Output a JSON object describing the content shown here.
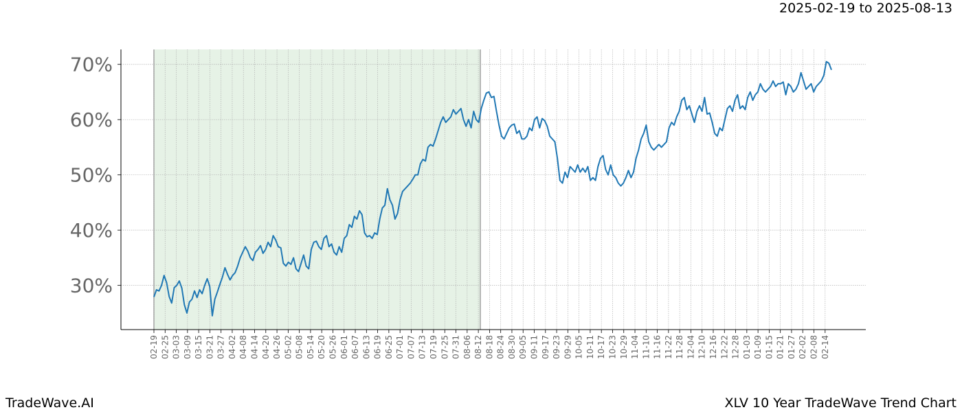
{
  "header": {
    "date_range": "2025-02-19 to 2025-08-13"
  },
  "footer": {
    "brand": "TradeWave.AI",
    "title": "XLV 10 Year TradeWave Trend Chart"
  },
  "chart_data": {
    "type": "line",
    "title": "XLV 10 Year TradeWave Trend Chart",
    "xlabel": "",
    "ylabel": "",
    "ylim": [
      22,
      72.7
    ],
    "grid": true,
    "legend": "none",
    "line_color": "#1f77b4",
    "highlight_color": "#e6f2e6",
    "highlight_range": [
      "02-19",
      "08-13"
    ],
    "y_ticks": [
      {
        "value": 30,
        "label": "30%"
      },
      {
        "value": 40,
        "label": "40%"
      },
      {
        "value": 50,
        "label": "50%"
      },
      {
        "value": 60,
        "label": "60%"
      },
      {
        "value": 70,
        "label": "70%"
      }
    ],
    "x_ticks": [
      "02-19",
      "02-25",
      "03-03",
      "03-09",
      "03-15",
      "03-21",
      "03-27",
      "04-02",
      "04-08",
      "04-14",
      "04-20",
      "04-26",
      "05-02",
      "05-08",
      "05-14",
      "05-20",
      "05-26",
      "06-01",
      "06-07",
      "06-13",
      "06-19",
      "06-25",
      "07-01",
      "07-07",
      "07-13",
      "07-19",
      "07-25",
      "07-31",
      "08-06",
      "08-12",
      "08-18",
      "08-24",
      "08-30",
      "09-05",
      "09-11",
      "09-17",
      "09-23",
      "09-29",
      "10-05",
      "10-11",
      "10-17",
      "10-23",
      "10-29",
      "11-04",
      "11-10",
      "11-16",
      "11-22",
      "11-28",
      "12-04",
      "12-10",
      "12-16",
      "12-22",
      "12-28",
      "01-03",
      "01-09",
      "01-15",
      "01-21",
      "01-27",
      "02-02",
      "02-08",
      "02-14"
    ],
    "series": [
      {
        "points": [
          [
            0,
            27.9
          ],
          [
            1,
            29.2
          ],
          [
            2,
            29.0
          ],
          [
            3,
            30.0
          ],
          [
            4,
            31.8
          ],
          [
            5,
            30.5
          ],
          [
            6,
            28.0
          ],
          [
            7,
            26.8
          ],
          [
            8,
            29.6
          ],
          [
            9,
            30.0
          ],
          [
            10,
            30.8
          ],
          [
            11,
            29.5
          ],
          [
            12,
            26.5
          ],
          [
            13,
            25.0
          ],
          [
            14,
            27.0
          ],
          [
            15,
            27.5
          ],
          [
            16,
            29.0
          ],
          [
            17,
            27.8
          ],
          [
            18,
            29.2
          ],
          [
            19,
            28.5
          ],
          [
            20,
            30.0
          ],
          [
            21,
            31.2
          ],
          [
            22,
            29.8
          ],
          [
            23,
            24.5
          ],
          [
            24,
            27.5
          ],
          [
            25,
            28.8
          ],
          [
            26,
            30.2
          ],
          [
            27,
            31.5
          ],
          [
            28,
            33.2
          ],
          [
            29,
            32.0
          ],
          [
            30,
            31.0
          ],
          [
            31,
            31.8
          ],
          [
            32,
            32.3
          ],
          [
            33,
            33.5
          ],
          [
            34,
            35.0
          ],
          [
            35,
            36.0
          ],
          [
            36,
            37.0
          ],
          [
            37,
            36.2
          ],
          [
            38,
            35.0
          ],
          [
            39,
            34.5
          ],
          [
            40,
            36.0
          ],
          [
            41,
            36.5
          ],
          [
            42,
            37.2
          ],
          [
            43,
            35.8
          ],
          [
            44,
            36.5
          ],
          [
            45,
            37.8
          ],
          [
            46,
            37.0
          ],
          [
            47,
            39.0
          ],
          [
            48,
            38.2
          ],
          [
            49,
            37.0
          ],
          [
            50,
            36.8
          ],
          [
            51,
            34.0
          ],
          [
            52,
            33.5
          ],
          [
            53,
            34.2
          ],
          [
            54,
            33.8
          ],
          [
            55,
            35.0
          ],
          [
            56,
            33.0
          ],
          [
            57,
            32.5
          ],
          [
            58,
            34.0
          ],
          [
            59,
            35.5
          ],
          [
            60,
            33.5
          ],
          [
            61,
            33.0
          ],
          [
            62,
            36.5
          ],
          [
            63,
            37.8
          ],
          [
            64,
            38.0
          ],
          [
            65,
            37.0
          ],
          [
            66,
            36.5
          ],
          [
            67,
            38.5
          ],
          [
            68,
            39.0
          ],
          [
            69,
            37.0
          ],
          [
            70,
            37.5
          ],
          [
            71,
            36.0
          ],
          [
            72,
            35.5
          ],
          [
            73,
            37.0
          ],
          [
            74,
            36.0
          ],
          [
            75,
            38.5
          ],
          [
            76,
            39.0
          ],
          [
            77,
            41.0
          ],
          [
            78,
            40.5
          ],
          [
            79,
            42.5
          ],
          [
            80,
            42.0
          ],
          [
            81,
            43.5
          ],
          [
            82,
            42.8
          ],
          [
            83,
            39.5
          ],
          [
            84,
            38.8
          ],
          [
            85,
            39.0
          ],
          [
            86,
            38.5
          ],
          [
            87,
            39.5
          ],
          [
            88,
            39.2
          ],
          [
            89,
            42.0
          ],
          [
            90,
            44.0
          ],
          [
            91,
            44.5
          ],
          [
            92,
            47.5
          ],
          [
            93,
            45.5
          ],
          [
            94,
            44.5
          ],
          [
            95,
            42.0
          ],
          [
            96,
            43.0
          ],
          [
            97,
            45.5
          ],
          [
            98,
            47.0
          ],
          [
            99,
            47.5
          ],
          [
            100,
            48.0
          ],
          [
            101,
            48.5
          ],
          [
            102,
            49.2
          ],
          [
            103,
            50.0
          ],
          [
            104,
            50.0
          ],
          [
            105,
            52.0
          ],
          [
            106,
            52.8
          ],
          [
            107,
            52.5
          ],
          [
            108,
            55.0
          ],
          [
            109,
            55.5
          ],
          [
            110,
            55.2
          ],
          [
            111,
            56.5
          ],
          [
            112,
            58.0
          ],
          [
            113,
            59.5
          ],
          [
            114,
            60.5
          ],
          [
            115,
            59.5
          ],
          [
            116,
            60.0
          ],
          [
            117,
            60.5
          ],
          [
            118,
            61.8
          ],
          [
            119,
            61.0
          ],
          [
            120,
            61.5
          ],
          [
            121,
            62.0
          ],
          [
            122,
            60.0
          ],
          [
            123,
            58.8
          ],
          [
            124,
            60.0
          ],
          [
            125,
            58.5
          ],
          [
            126,
            61.5
          ],
          [
            127,
            60.0
          ],
          [
            128,
            59.5
          ],
          [
            129,
            62.0
          ],
          [
            130,
            63.5
          ],
          [
            131,
            64.8
          ],
          [
            132,
            65.0
          ],
          [
            133,
            64.0
          ],
          [
            134,
            64.2
          ],
          [
            135,
            61.5
          ],
          [
            136,
            59.0
          ],
          [
            137,
            57.0
          ],
          [
            138,
            56.5
          ],
          [
            139,
            57.5
          ],
          [
            140,
            58.5
          ],
          [
            141,
            59.0
          ],
          [
            142,
            59.2
          ],
          [
            143,
            57.5
          ],
          [
            144,
            58.0
          ],
          [
            145,
            56.5
          ],
          [
            146,
            56.5
          ],
          [
            147,
            57.0
          ],
          [
            148,
            58.5
          ],
          [
            149,
            58.0
          ],
          [
            150,
            60.0
          ],
          [
            151,
            60.5
          ],
          [
            152,
            58.5
          ],
          [
            153,
            60.2
          ],
          [
            154,
            59.8
          ],
          [
            155,
            58.8
          ],
          [
            156,
            57.0
          ],
          [
            157,
            56.5
          ],
          [
            158,
            56.0
          ],
          [
            159,
            53.0
          ],
          [
            160,
            49.0
          ],
          [
            161,
            48.5
          ],
          [
            162,
            50.5
          ],
          [
            163,
            49.5
          ],
          [
            164,
            51.5
          ],
          [
            165,
            51.0
          ],
          [
            166,
            50.5
          ],
          [
            167,
            51.8
          ],
          [
            168,
            50.5
          ],
          [
            169,
            51.2
          ],
          [
            170,
            50.5
          ],
          [
            171,
            51.5
          ],
          [
            172,
            49.0
          ],
          [
            173,
            49.5
          ],
          [
            174,
            49.0
          ],
          [
            175,
            51.5
          ],
          [
            176,
            53.0
          ],
          [
            177,
            53.5
          ],
          [
            178,
            51.0
          ],
          [
            179,
            50.0
          ],
          [
            180,
            51.8
          ],
          [
            181,
            50.0
          ],
          [
            182,
            49.5
          ],
          [
            183,
            48.5
          ],
          [
            184,
            48.0
          ],
          [
            185,
            48.5
          ],
          [
            186,
            49.5
          ],
          [
            187,
            50.8
          ],
          [
            188,
            49.5
          ],
          [
            189,
            50.5
          ],
          [
            190,
            53.0
          ],
          [
            191,
            54.5
          ],
          [
            192,
            56.5
          ],
          [
            193,
            57.5
          ],
          [
            194,
            59.0
          ],
          [
            195,
            56.0
          ],
          [
            196,
            55.0
          ],
          [
            197,
            54.5
          ],
          [
            198,
            55.0
          ],
          [
            199,
            55.5
          ],
          [
            200,
            55.0
          ],
          [
            201,
            55.5
          ],
          [
            202,
            56.0
          ],
          [
            203,
            58.5
          ],
          [
            204,
            59.5
          ],
          [
            205,
            59.0
          ],
          [
            206,
            60.5
          ],
          [
            207,
            61.5
          ],
          [
            208,
            63.5
          ],
          [
            209,
            64.0
          ],
          [
            210,
            61.8
          ],
          [
            211,
            62.5
          ],
          [
            212,
            61.0
          ],
          [
            213,
            59.5
          ],
          [
            214,
            61.5
          ],
          [
            215,
            62.5
          ],
          [
            216,
            61.5
          ],
          [
            217,
            64.0
          ],
          [
            218,
            61.0
          ],
          [
            219,
            61.2
          ],
          [
            220,
            59.5
          ],
          [
            221,
            57.5
          ],
          [
            222,
            57.0
          ],
          [
            223,
            58.5
          ],
          [
            224,
            58.0
          ],
          [
            225,
            60.0
          ],
          [
            226,
            62.0
          ],
          [
            227,
            62.5
          ],
          [
            228,
            61.5
          ],
          [
            229,
            63.5
          ],
          [
            230,
            64.5
          ],
          [
            231,
            62.0
          ],
          [
            232,
            62.5
          ],
          [
            233,
            61.8
          ],
          [
            234,
            64.0
          ],
          [
            235,
            65.0
          ],
          [
            236,
            63.5
          ],
          [
            237,
            64.5
          ],
          [
            238,
            65.0
          ],
          [
            239,
            66.5
          ],
          [
            240,
            65.5
          ],
          [
            241,
            65.0
          ],
          [
            242,
            65.5
          ],
          [
            243,
            66.0
          ],
          [
            244,
            67.0
          ],
          [
            245,
            66.0
          ],
          [
            246,
            66.5
          ],
          [
            247,
            66.5
          ],
          [
            248,
            66.8
          ],
          [
            249,
            64.5
          ],
          [
            250,
            66.5
          ],
          [
            251,
            66.0
          ],
          [
            252,
            65.0
          ],
          [
            253,
            65.5
          ],
          [
            254,
            66.5
          ],
          [
            255,
            68.5
          ],
          [
            256,
            67.0
          ],
          [
            257,
            65.5
          ],
          [
            258,
            66.0
          ],
          [
            259,
            66.5
          ],
          [
            260,
            65.0
          ],
          [
            261,
            66.0
          ],
          [
            262,
            66.5
          ],
          [
            263,
            67.0
          ],
          [
            264,
            68.0
          ],
          [
            265,
            70.5
          ],
          [
            266,
            70.2
          ],
          [
            267,
            69.0
          ]
        ]
      }
    ]
  }
}
